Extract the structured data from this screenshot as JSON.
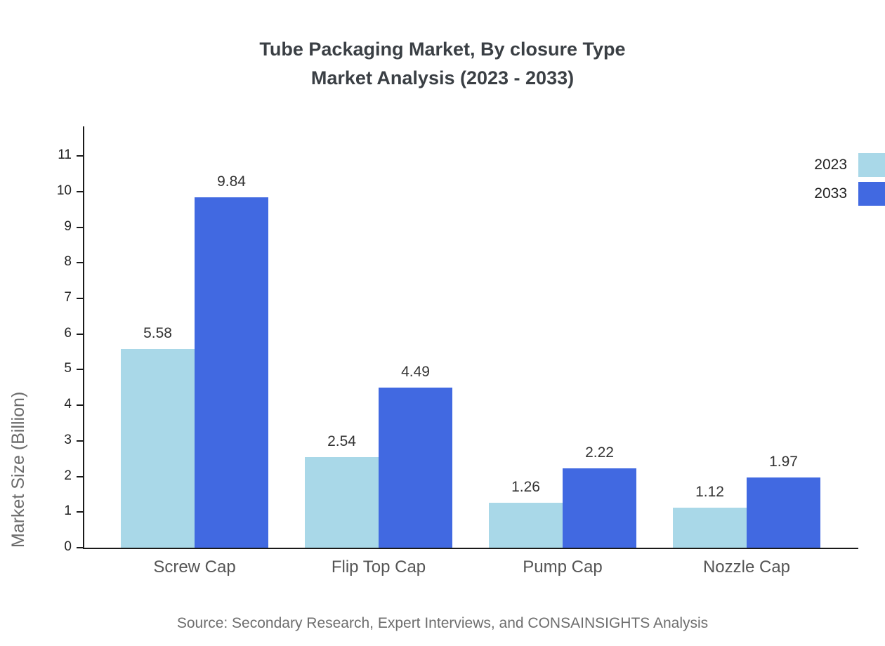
{
  "title": {
    "line1": "Tube Packaging Market, By closure Type",
    "line2": "Market Analysis (2023 - 2033)"
  },
  "chart_data": {
    "type": "bar",
    "title": "Tube Packaging Market, By closure Type Market Analysis (2023 - 2033)",
    "categories": [
      "Screw Cap",
      "Flip Top Cap",
      "Pump Cap",
      "Nozzle Cap"
    ],
    "series": [
      {
        "name": "2023",
        "color": "#a9d8e8",
        "values": [
          5.58,
          2.54,
          1.26,
          1.12
        ]
      },
      {
        "name": "2033",
        "color": "#4169e1",
        "values": [
          9.84,
          4.49,
          2.22,
          1.97
        ]
      }
    ],
    "xlabel": "",
    "ylabel": "Market Size (Billion)",
    "ylim": [
      0,
      11.83
    ],
    "yticks": [
      0,
      1,
      2,
      3,
      4,
      5,
      6,
      7,
      8,
      9,
      10,
      11
    ],
    "grid": false,
    "legend_position": "top-right"
  },
  "source": "Source: Secondary Research, Expert Interviews, and CONSAINSIGHTS Analysis"
}
